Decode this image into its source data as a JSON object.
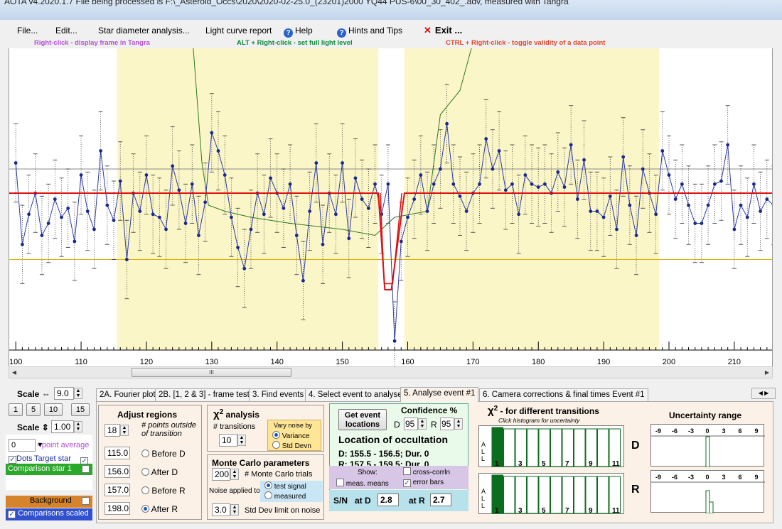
{
  "window": {
    "title": "AOTA v4.2020.1.7    File being processed is F:\\_Asteroid_Occs\\2020\\2020-02-25.0_(23201)2000 YQ44 PUS-6\\00_30_402_.adv, measured with Tangra"
  },
  "menu": {
    "file": "File...",
    "edit": "Edit...",
    "star_diameter": "Star diameter analysis...",
    "light_curve": "Light curve report",
    "help": "Help",
    "hints": "Hints and Tips",
    "exit": "Exit ..."
  },
  "hints": {
    "right_click": "Right-click  -  display frame in Tangra",
    "alt_right_click": "ALT + Right-click  -  set full light level",
    "ctrl_right_click": "CTRL + Right-click  -  toggle validity of a data point"
  },
  "colors": {
    "hint1": "#b44fd6",
    "hint2": "#0b8a3a",
    "hint3": "#e2452a",
    "region": "#fbf6c8",
    "model": "#e31010",
    "series": "#2b3aa8",
    "envelope": "#2e7a1c",
    "level": "#e0b000"
  },
  "chart_data": {
    "type": "line",
    "xlabel": "",
    "ylabel": "",
    "x_range": [
      99,
      216
    ],
    "x_ticks": [
      100,
      110,
      120,
      130,
      140,
      150,
      160,
      170,
      180,
      190,
      200,
      210
    ],
    "shaded_regions": [
      [
        115.5,
        155.5
      ],
      [
        159.5,
        198.5
      ]
    ],
    "series": [
      {
        "values": [
          0.62,
          0.35,
          0.45,
          0.52,
          0.38,
          0.42,
          0.5,
          0.44,
          0.47,
          0.36,
          0.58,
          0.46,
          0.4,
          0.66,
          0.48,
          0.43,
          0.56,
          0.3,
          0.52,
          0.46,
          0.58,
          0.45,
          0.44,
          0.4,
          0.61,
          0.53,
          0.42,
          0.55,
          0.38,
          0.49,
          0.72,
          0.66,
          0.58,
          0.44,
          0.34,
          0.27,
          0.4,
          0.52,
          0.45,
          0.57,
          0.52,
          0.47,
          0.55,
          0.38,
          0.23,
          0.46,
          0.62,
          0.35,
          0.52,
          0.45,
          0.62,
          0.37,
          0.57,
          0.5,
          0.47,
          0.55,
          0.45,
          0.55,
          0.03,
          0.36,
          0.44,
          0.5,
          0.58,
          0.46,
          0.55,
          0.6,
          0.75,
          0.55,
          0.51,
          0.46,
          0.52,
          0.55,
          0.7,
          0.6,
          0.66,
          0.53,
          0.55,
          0.45,
          0.58,
          0.55,
          0.54,
          0.55,
          0.52,
          0.59,
          0.54,
          0.68,
          0.5,
          0.63,
          0.46,
          0.46,
          0.44,
          0.51,
          0.4,
          0.64,
          0.48,
          0.38,
          0.6,
          0.52,
          0.45,
          0.66,
          0.58,
          0.5,
          0.55,
          0.48,
          0.42,
          0.42,
          0.48,
          0.55,
          0.56,
          0.68,
          0.4,
          0.48,
          0.44,
          0.55,
          0.46,
          0.5,
          0.48,
          0.58,
          0.42,
          0.66,
          0.4,
          0.52,
          0.55,
          0.57,
          0.4,
          0.52
        ]
      }
    ],
    "model_full": 0.52,
    "model_occulted": 0.2,
    "model_transitions": {
      "D": [
        155.5,
        156.5
      ],
      "R": [
        157.5,
        159.5
      ]
    },
    "level_line": 0.3,
    "grid": false
  },
  "left_panel": {
    "scale_label": "Scale",
    "scale_x_value": "9.0",
    "btn1": "1",
    "btn5": "5",
    "btn10": "10",
    "btn15": "15",
    "scale_y_value": "1.00",
    "avg_value": "0",
    "avg_label": "- point average",
    "dots_label": "Dots",
    "target_label": "Target star",
    "comparison_label": "Comparison star 1",
    "background_label": "Background",
    "comparisons_label": "Comparisons scaled"
  },
  "tabs": [
    "2A. Fourier plot",
    "2B. [1, 2 & 3] - frame test",
    "3. Find events",
    "4. Select event to analyse",
    "5. Analyse event #1",
    "6. Camera corrections & final times Event #1"
  ],
  "adjust": {
    "title": "Adjust regions",
    "points_value": "18",
    "points_label": "# points outside of transition",
    "before_d_value": "115.0",
    "before_d_label": "Before D",
    "after_d_value": "156.0",
    "after_d_label": "After D",
    "before_r_value": "157.0",
    "before_r_label": "Before R",
    "after_r_value": "198.0",
    "after_r_label": "After R"
  },
  "chi2": {
    "title": "analysis",
    "transitions_label": "# transitions",
    "transitions_value": "10",
    "vary_label": "Vary noise by",
    "variance": "Variance",
    "stddev": "Std Devn"
  },
  "monte": {
    "title": "Monte Carlo parameters",
    "trials_value": "200",
    "trials_label": "# Monte Carlo trials",
    "noise_label": "Noise applied to",
    "test_signal": "test signal",
    "measured": "measured",
    "limit_value": "3.0",
    "limit_label": "Std Dev limit on noise"
  },
  "location": {
    "get_button": "Get event locations",
    "confidence_label": "Confidence %",
    "d_label": "D",
    "d_value": "95",
    "r_label": "R",
    "r_value": "95",
    "title": "Location of occultation",
    "d_line": "D: 155.5 - 156.5; Dur. 0",
    "r_line": "R: 157.5 - 159.5; Dur. 0",
    "show_label": "Show:",
    "cross_corr": "cross-corrln",
    "meas_means": "meas. means",
    "error_bars": "error bars",
    "sn_label": "S/N",
    "at_d_label": "at D",
    "at_d_value": "2.8",
    "at_r_label": "at R",
    "at_r_value": "2.7"
  },
  "chi2_hist": {
    "title": "- for different transitions",
    "subtitle": "Click histogram for uncertainty",
    "side_labels": [
      "A",
      "L",
      "L"
    ],
    "ticks": [
      "1",
      "3",
      "5",
      "7",
      "9",
      "11"
    ],
    "d_label": "D",
    "r_label": "R"
  },
  "uncertainty": {
    "title": "Uncertainty range",
    "ticks": [
      "-9",
      "-6",
      "-3",
      "0",
      "3",
      "6",
      "9"
    ]
  }
}
